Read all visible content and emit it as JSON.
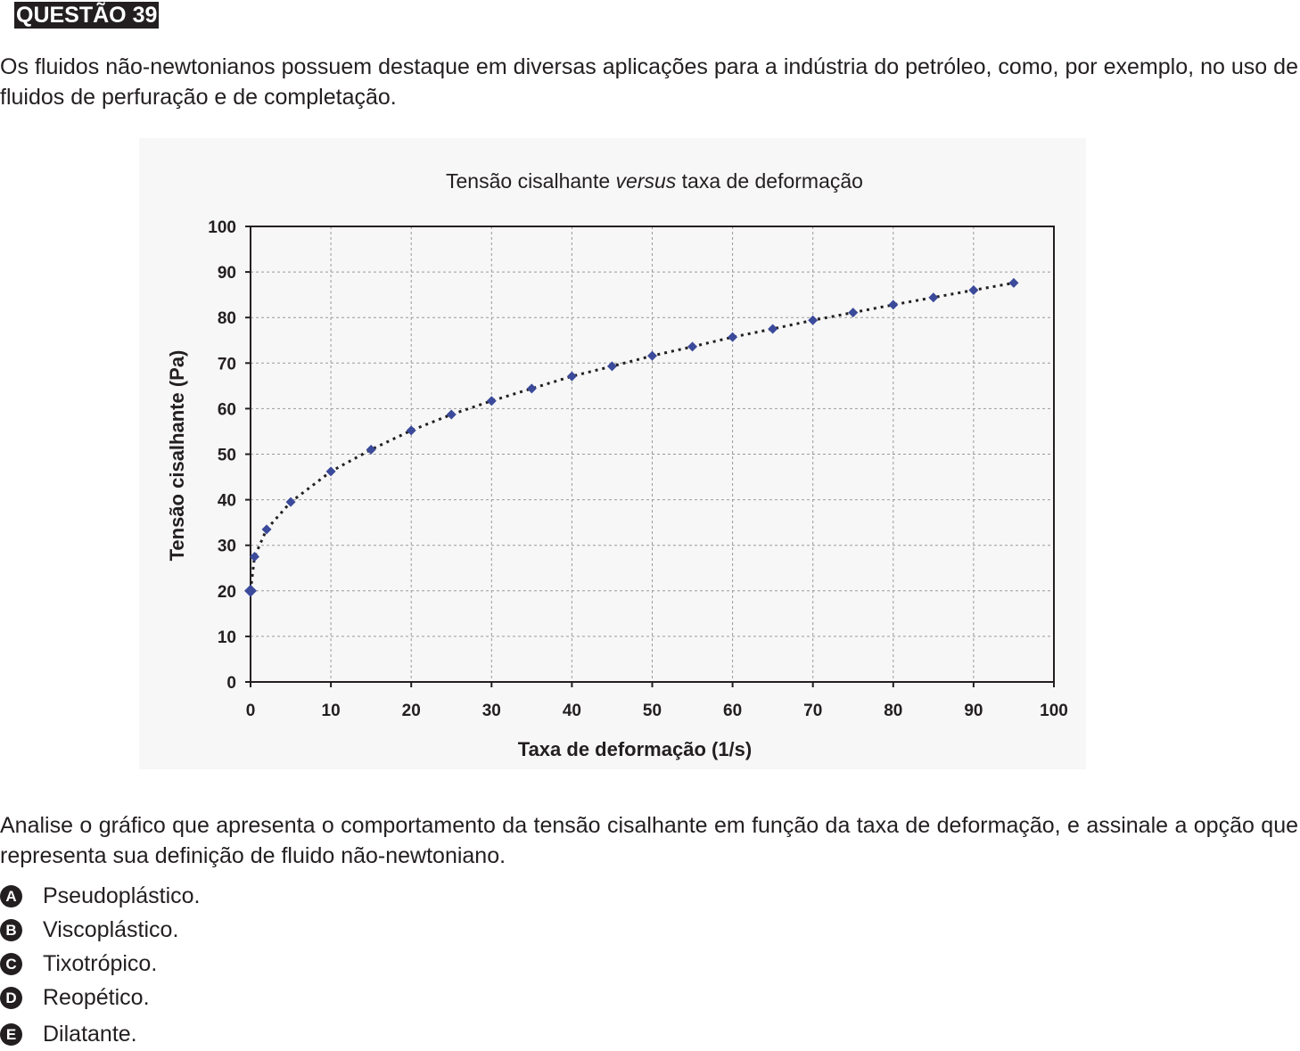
{
  "question": {
    "badge": "QUESTÃO 39",
    "intro": "Os fluidos não-newtonianos possuem destaque em diversas aplicações para a indústria do petróleo, como, por exemplo, no uso de fluidos de perfuração e de completação.",
    "stem": "Analise o gráfico que apresenta o comportamento da tensão cisalhante em função da taxa de deformação, e assinale a opção que representa sua definição de fluido não-newtoniano.",
    "options": [
      {
        "letter": "A",
        "text": "Pseudoplástico."
      },
      {
        "letter": "B",
        "text": "Viscoplástico."
      },
      {
        "letter": "C",
        "text": "Tixotrópico."
      },
      {
        "letter": "D",
        "text": "Reopético."
      },
      {
        "letter": "E",
        "text": "Dilatante."
      }
    ]
  },
  "chart_data": {
    "type": "scatter",
    "title_parts": [
      {
        "text": "Tensão cisalhante ",
        "italic": false
      },
      {
        "text": "versus",
        "italic": true
      },
      {
        "text": " taxa de deformação",
        "italic": false
      }
    ],
    "xlabel": "Taxa de deformação (1/s)",
    "ylabel": "Tensão cisalhante (Pa)",
    "xlim": [
      0,
      100
    ],
    "ylim": [
      0,
      100
    ],
    "xticks": [
      "0",
      "10",
      "20",
      "30",
      "40",
      "50",
      "60",
      "70",
      "80",
      "90",
      "100"
    ],
    "yticks": [
      "0",
      "10",
      "20",
      "30",
      "40",
      "50",
      "60",
      "70",
      "80",
      "90",
      "100"
    ],
    "grid": true,
    "trendline": "dotted",
    "marker": "diamond",
    "marker_color": "#3b4a9a",
    "x": [
      0,
      0.5,
      2,
      5,
      10,
      15,
      20,
      25,
      30,
      35,
      40,
      45,
      50,
      55,
      60,
      65,
      70,
      75,
      80,
      85,
      90,
      95
    ],
    "y": [
      20,
      27.5,
      33.5,
      39.5,
      46.2,
      51,
      55.2,
      58.7,
      61.7,
      64.4,
      67.1,
      69.3,
      71.6,
      73.6,
      75.7,
      77.5,
      79.4,
      81.1,
      82.8,
      84.4,
      86,
      87.6
    ]
  }
}
